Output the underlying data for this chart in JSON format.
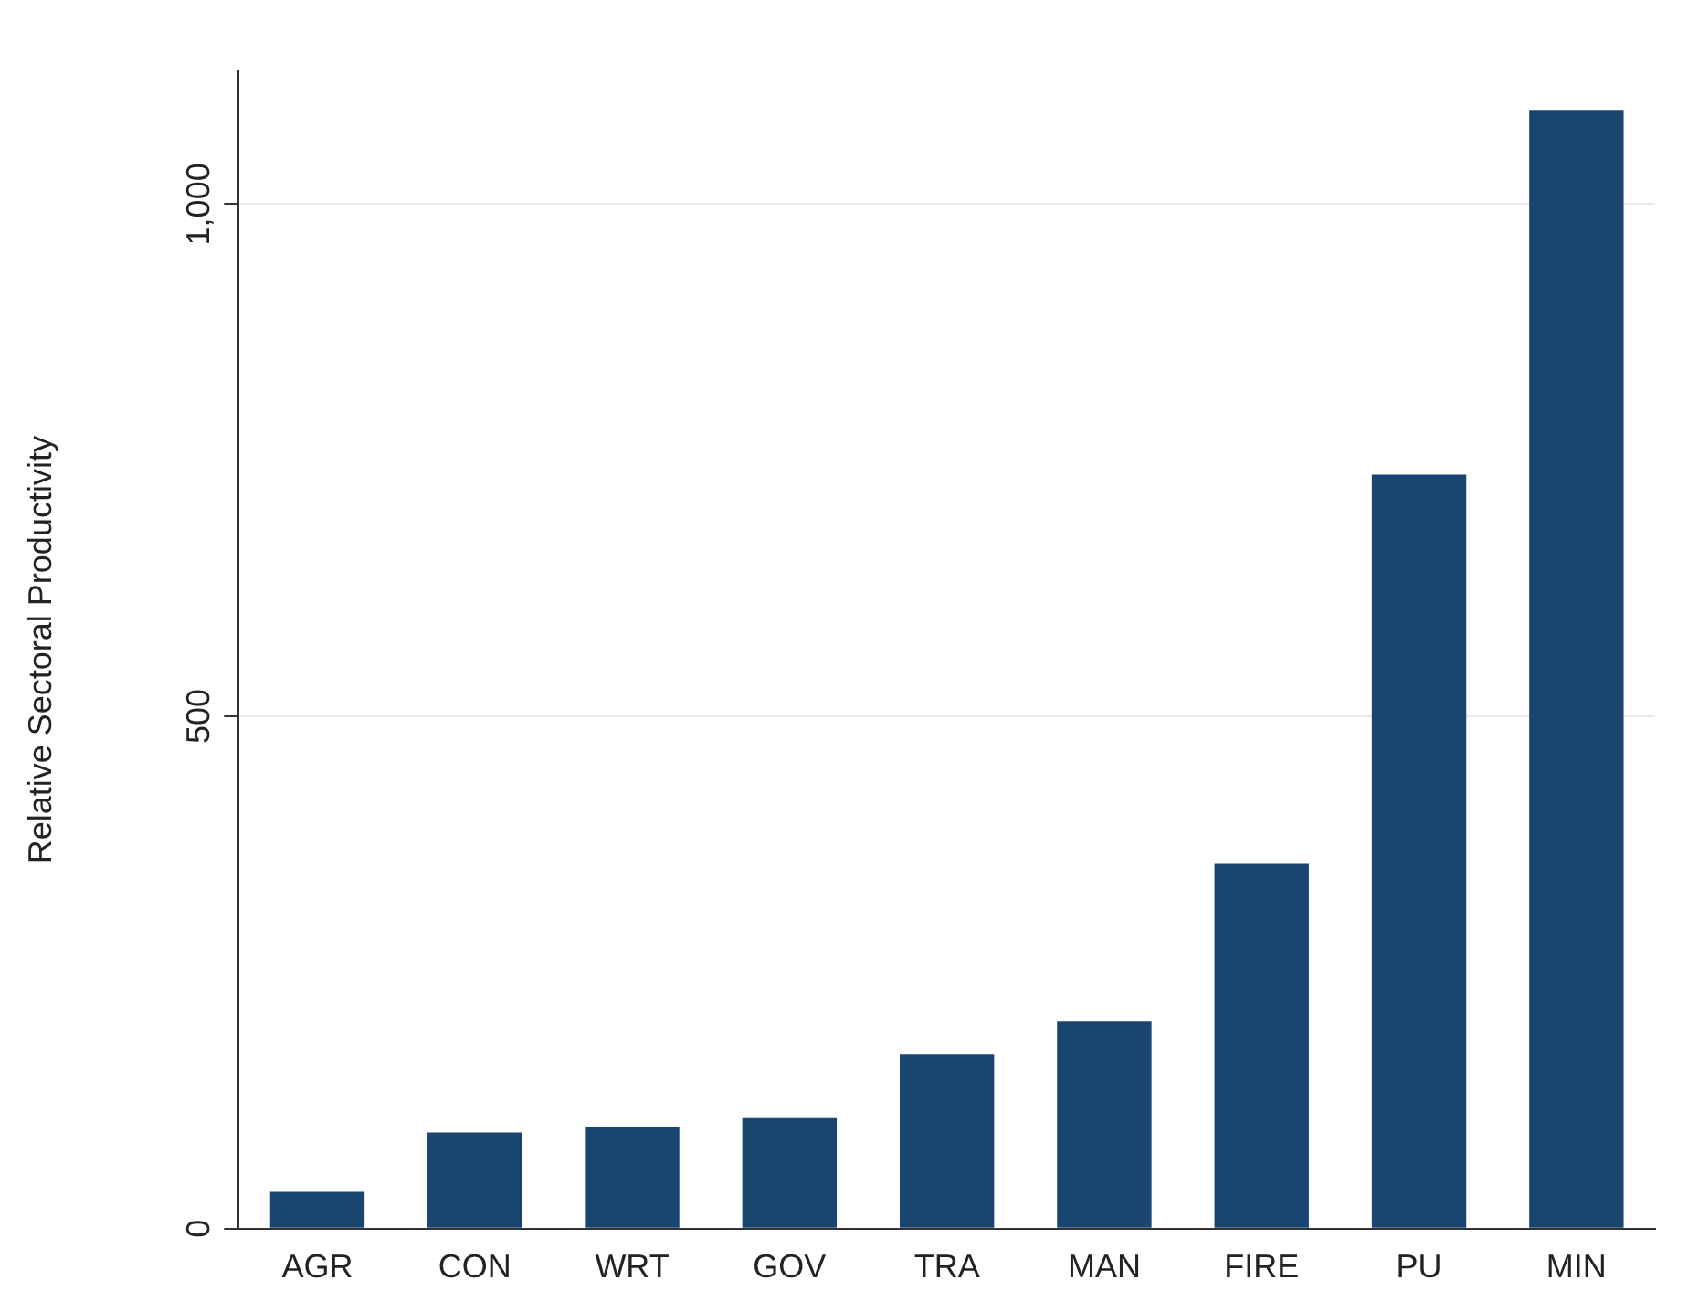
{
  "chart_data": {
    "type": "bar",
    "ylabel": "Relative Sectoral Productivity",
    "categories": [
      "AGR",
      "CON",
      "WRT",
      "GOV",
      "TRA",
      "MAN",
      "FIRE",
      "PU",
      "MIN"
    ],
    "values": [
      36,
      94,
      99,
      108,
      170,
      202,
      356,
      736,
      1092
    ],
    "color": "#1a4570",
    "ylim": [
      0,
      1130
    ],
    "yticks": [
      0,
      500,
      {
        "value": 1000,
        "label": "1,000"
      }
    ],
    "grid": "y",
    "legend": false
  }
}
